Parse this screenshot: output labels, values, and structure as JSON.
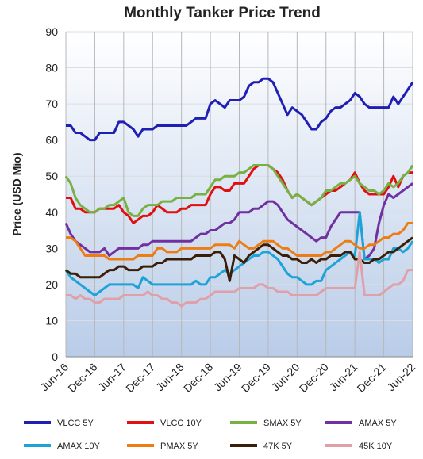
{
  "chart_data": {
    "type": "line",
    "title": "Monthly Tanker Price Trend",
    "y_label": "Price (USD Mio)",
    "categories": [
      "Jun-16",
      null,
      null,
      null,
      null,
      null,
      "Dec-16",
      null,
      null,
      null,
      null,
      null,
      "Jun-17",
      null,
      null,
      null,
      null,
      null,
      "Dec-17",
      null,
      null,
      null,
      null,
      null,
      "Jun-18",
      null,
      null,
      null,
      null,
      null,
      "Dec-18",
      null,
      null,
      null,
      null,
      null,
      "Jun-19",
      null,
      null,
      null,
      null,
      null,
      "Dec-19",
      null,
      null,
      null,
      null,
      null,
      "Jun-20",
      null,
      null,
      null,
      null,
      null,
      "Dec-20",
      null,
      null,
      null,
      null,
      null,
      "Jun-21",
      null,
      null,
      null,
      null,
      null,
      "Dec-21",
      null,
      null,
      null,
      null,
      null,
      "Jun-22"
    ],
    "ylim": [
      0,
      90
    ],
    "yticks": [
      0,
      10,
      20,
      30,
      40,
      50,
      60,
      70,
      80,
      90
    ],
    "grid": true,
    "legend": "bottom",
    "series": [
      {
        "name": "VLCC 5Y",
        "color": "#1f1fb4",
        "values": [
          64,
          64,
          62,
          62,
          61,
          60,
          60,
          62,
          62,
          62,
          62,
          65,
          65,
          64,
          63,
          61,
          63,
          63,
          63,
          64,
          64,
          64,
          64,
          64,
          64,
          64,
          65,
          66,
          66,
          66,
          70,
          71,
          70,
          69,
          71,
          71,
          71,
          72,
          75,
          76,
          76,
          77,
          77,
          76,
          73,
          70,
          67,
          69,
          68,
          67,
          65,
          63,
          63,
          65,
          66,
          68,
          69,
          69,
          70,
          71,
          73,
          72,
          70,
          69,
          69,
          69,
          69,
          69,
          72,
          70,
          72,
          74,
          76
        ]
      },
      {
        "name": "VLCC 10Y",
        "color": "#e01010",
        "values": [
          44,
          44,
          41,
          41,
          40,
          40,
          40,
          41,
          41,
          41,
          41,
          42,
          40,
          39,
          37,
          38,
          39,
          39,
          40,
          42,
          41,
          40,
          40,
          40,
          41,
          41,
          42,
          42,
          42,
          42,
          45,
          47,
          47,
          46,
          46,
          48,
          48,
          48,
          50,
          52,
          53,
          53,
          53,
          52,
          51,
          49,
          46,
          44,
          45,
          44,
          43,
          42,
          43,
          44,
          45,
          46,
          46,
          47,
          48,
          49,
          51,
          48,
          46,
          45,
          45,
          45,
          45,
          47,
          50,
          47,
          50,
          51,
          51
        ]
      },
      {
        "name": "SMAX 5Y",
        "color": "#77b043",
        "values": [
          50,
          48,
          44,
          42,
          41,
          40,
          40,
          41,
          41,
          42,
          42,
          43,
          44,
          40,
          39,
          39,
          41,
          42,
          42,
          42,
          43,
          43,
          43,
          44,
          44,
          44,
          44,
          45,
          45,
          45,
          47,
          49,
          49,
          50,
          50,
          50,
          51,
          51,
          52,
          53,
          53,
          53,
          53,
          52,
          50,
          48,
          46,
          44,
          45,
          44,
          43,
          42,
          43,
          44,
          46,
          46,
          47,
          48,
          48,
          49,
          50,
          48,
          47,
          46,
          46,
          45,
          46,
          48,
          47,
          48,
          50,
          51,
          53
        ]
      },
      {
        "name": "AMAX 5Y",
        "color": "#7030a0",
        "values": [
          37,
          34,
          32,
          31,
          30,
          29,
          29,
          29,
          30,
          28,
          29,
          30,
          30,
          30,
          30,
          30,
          31,
          31,
          32,
          32,
          32,
          32,
          32,
          32,
          32,
          32,
          32,
          33,
          34,
          34,
          35,
          35,
          36,
          37,
          37,
          38,
          40,
          40,
          40,
          41,
          41,
          42,
          43,
          43,
          42,
          40,
          38,
          37,
          36,
          35,
          34,
          33,
          32,
          33,
          33,
          36,
          38,
          40,
          40,
          40,
          40,
          40,
          27,
          28,
          30,
          37,
          42,
          45,
          44,
          45,
          46,
          47,
          48
        ]
      },
      {
        "name": "AMAX 10Y",
        "color": "#1ea3d8",
        "values": [
          24,
          22,
          21,
          20,
          19,
          18,
          17,
          18,
          19,
          20,
          20,
          20,
          20,
          20,
          20,
          19,
          22,
          21,
          20,
          20,
          20,
          20,
          20,
          20,
          20,
          20,
          20,
          21,
          20,
          20,
          22,
          22,
          23,
          24,
          23,
          24,
          25,
          26,
          27,
          28,
          28,
          29,
          29,
          28,
          27,
          25,
          23,
          22,
          22,
          21,
          20,
          20,
          21,
          21,
          24,
          25,
          26,
          27,
          28,
          29,
          28,
          40,
          27,
          27,
          27,
          26,
          27,
          27,
          30,
          30,
          29,
          30,
          32
        ]
      },
      {
        "name": "PMAX 5Y",
        "color": "#ed7d12",
        "values": [
          33,
          33,
          32,
          30,
          28,
          28,
          28,
          28,
          28,
          27,
          27,
          27,
          27,
          27,
          27,
          28,
          28,
          28,
          28,
          30,
          30,
          29,
          29,
          29,
          30,
          30,
          30,
          30,
          30,
          30,
          30,
          31,
          31,
          31,
          31,
          30,
          32,
          31,
          30,
          30,
          31,
          32,
          32,
          32,
          31,
          30,
          30,
          29,
          28,
          28,
          28,
          28,
          28,
          28,
          29,
          29,
          30,
          31,
          32,
          32,
          31,
          30,
          30,
          31,
          31,
          32,
          33,
          33,
          34,
          34,
          35,
          37,
          37
        ]
      },
      {
        "name": "47K 5Y",
        "color": "#3b1e08",
        "values": [
          24,
          23,
          23,
          22,
          22,
          22,
          22,
          22,
          23,
          24,
          24,
          25,
          25,
          24,
          24,
          24,
          25,
          25,
          25,
          26,
          26,
          27,
          27,
          27,
          27,
          27,
          27,
          28,
          28,
          28,
          28,
          29,
          29,
          27,
          21,
          28,
          27,
          26,
          28,
          29,
          30,
          31,
          31,
          30,
          29,
          28,
          28,
          27,
          27,
          26,
          26,
          27,
          26,
          27,
          27,
          28,
          28,
          28,
          29,
          29,
          27,
          27,
          26,
          26,
          27,
          27,
          28,
          29,
          29,
          30,
          31,
          32,
          33
        ]
      },
      {
        "name": "45K 10Y",
        "color": "#e0a0a8",
        "values": [
          17,
          17,
          16,
          17,
          16,
          16,
          15,
          15,
          16,
          16,
          16,
          16,
          17,
          17,
          17,
          17,
          17,
          18,
          17,
          17,
          16,
          16,
          15,
          15,
          14,
          15,
          15,
          15,
          16,
          16,
          17,
          18,
          18,
          18,
          18,
          18,
          19,
          19,
          19,
          19,
          20,
          20,
          19,
          19,
          18,
          18,
          18,
          17,
          17,
          17,
          17,
          17,
          17,
          18,
          19,
          19,
          19,
          19,
          19,
          19,
          19,
          29,
          17,
          17,
          17,
          17,
          18,
          19,
          20,
          20,
          21,
          24,
          24
        ]
      }
    ]
  }
}
